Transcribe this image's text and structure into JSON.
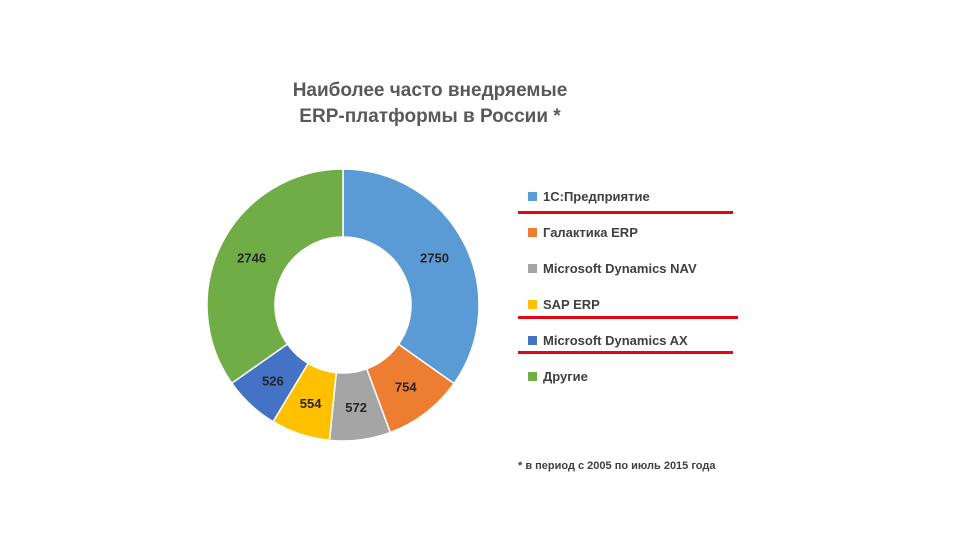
{
  "title_line1": "Наиболее часто внедряемые",
  "title_line2": "ERP-платформы  в России *",
  "footnote": "* в период с 2005 по июль 2015 года",
  "chart_data": {
    "type": "pie",
    "variant": "donut",
    "title": "Наиболее часто внедряемые ERP-платформы  в России *",
    "categories": [
      "1С:Предприятие",
      "Галактика ERP",
      "Microsoft Dynamics NAV",
      "SAP ERP",
      "Microsoft Dynamics AX",
      "Другие"
    ],
    "values": [
      2750,
      754,
      572,
      554,
      526,
      2746
    ],
    "labels": [
      "2750",
      "754",
      "572",
      "554",
      "526",
      "2746"
    ],
    "colors": [
      "#5b9bd5",
      "#ed7d31",
      "#a5a5a5",
      "#ffc000",
      "#4472c4",
      "#70ad47"
    ],
    "legend_position": "right",
    "highlighted": [
      "1С:Предприятие",
      "SAP ERP",
      "Microsoft Dynamics AX"
    ],
    "highlight_color": "#e30613"
  }
}
